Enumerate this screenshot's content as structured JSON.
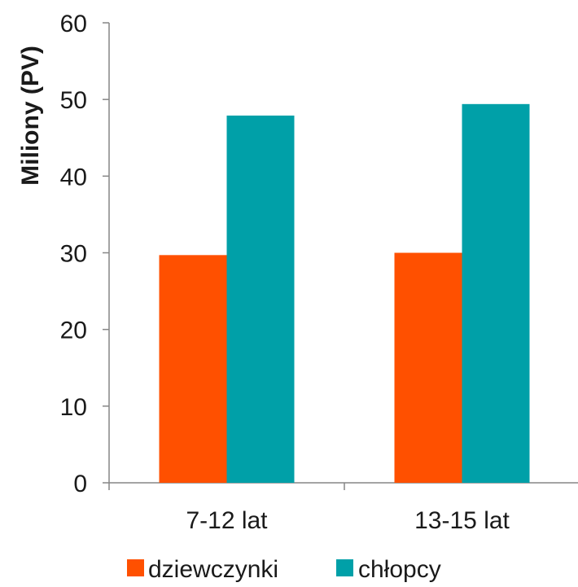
{
  "chart_data": {
    "type": "bar",
    "title": "",
    "xlabel": "",
    "ylabel": "Miliony (PV)",
    "ylim": [
      0,
      60
    ],
    "yticks": [
      0,
      10,
      20,
      30,
      40,
      50,
      60
    ],
    "categories": [
      "7-12 lat",
      "13-15 lat"
    ],
    "series": [
      {
        "name": "dziewczynki",
        "color": "#ff5000",
        "values": [
          29.7,
          30.0
        ]
      },
      {
        "name": "chłopcy",
        "color": "#00a0a8",
        "values": [
          47.9,
          49.4
        ]
      }
    ],
    "legend": "bottom",
    "grid": false
  }
}
